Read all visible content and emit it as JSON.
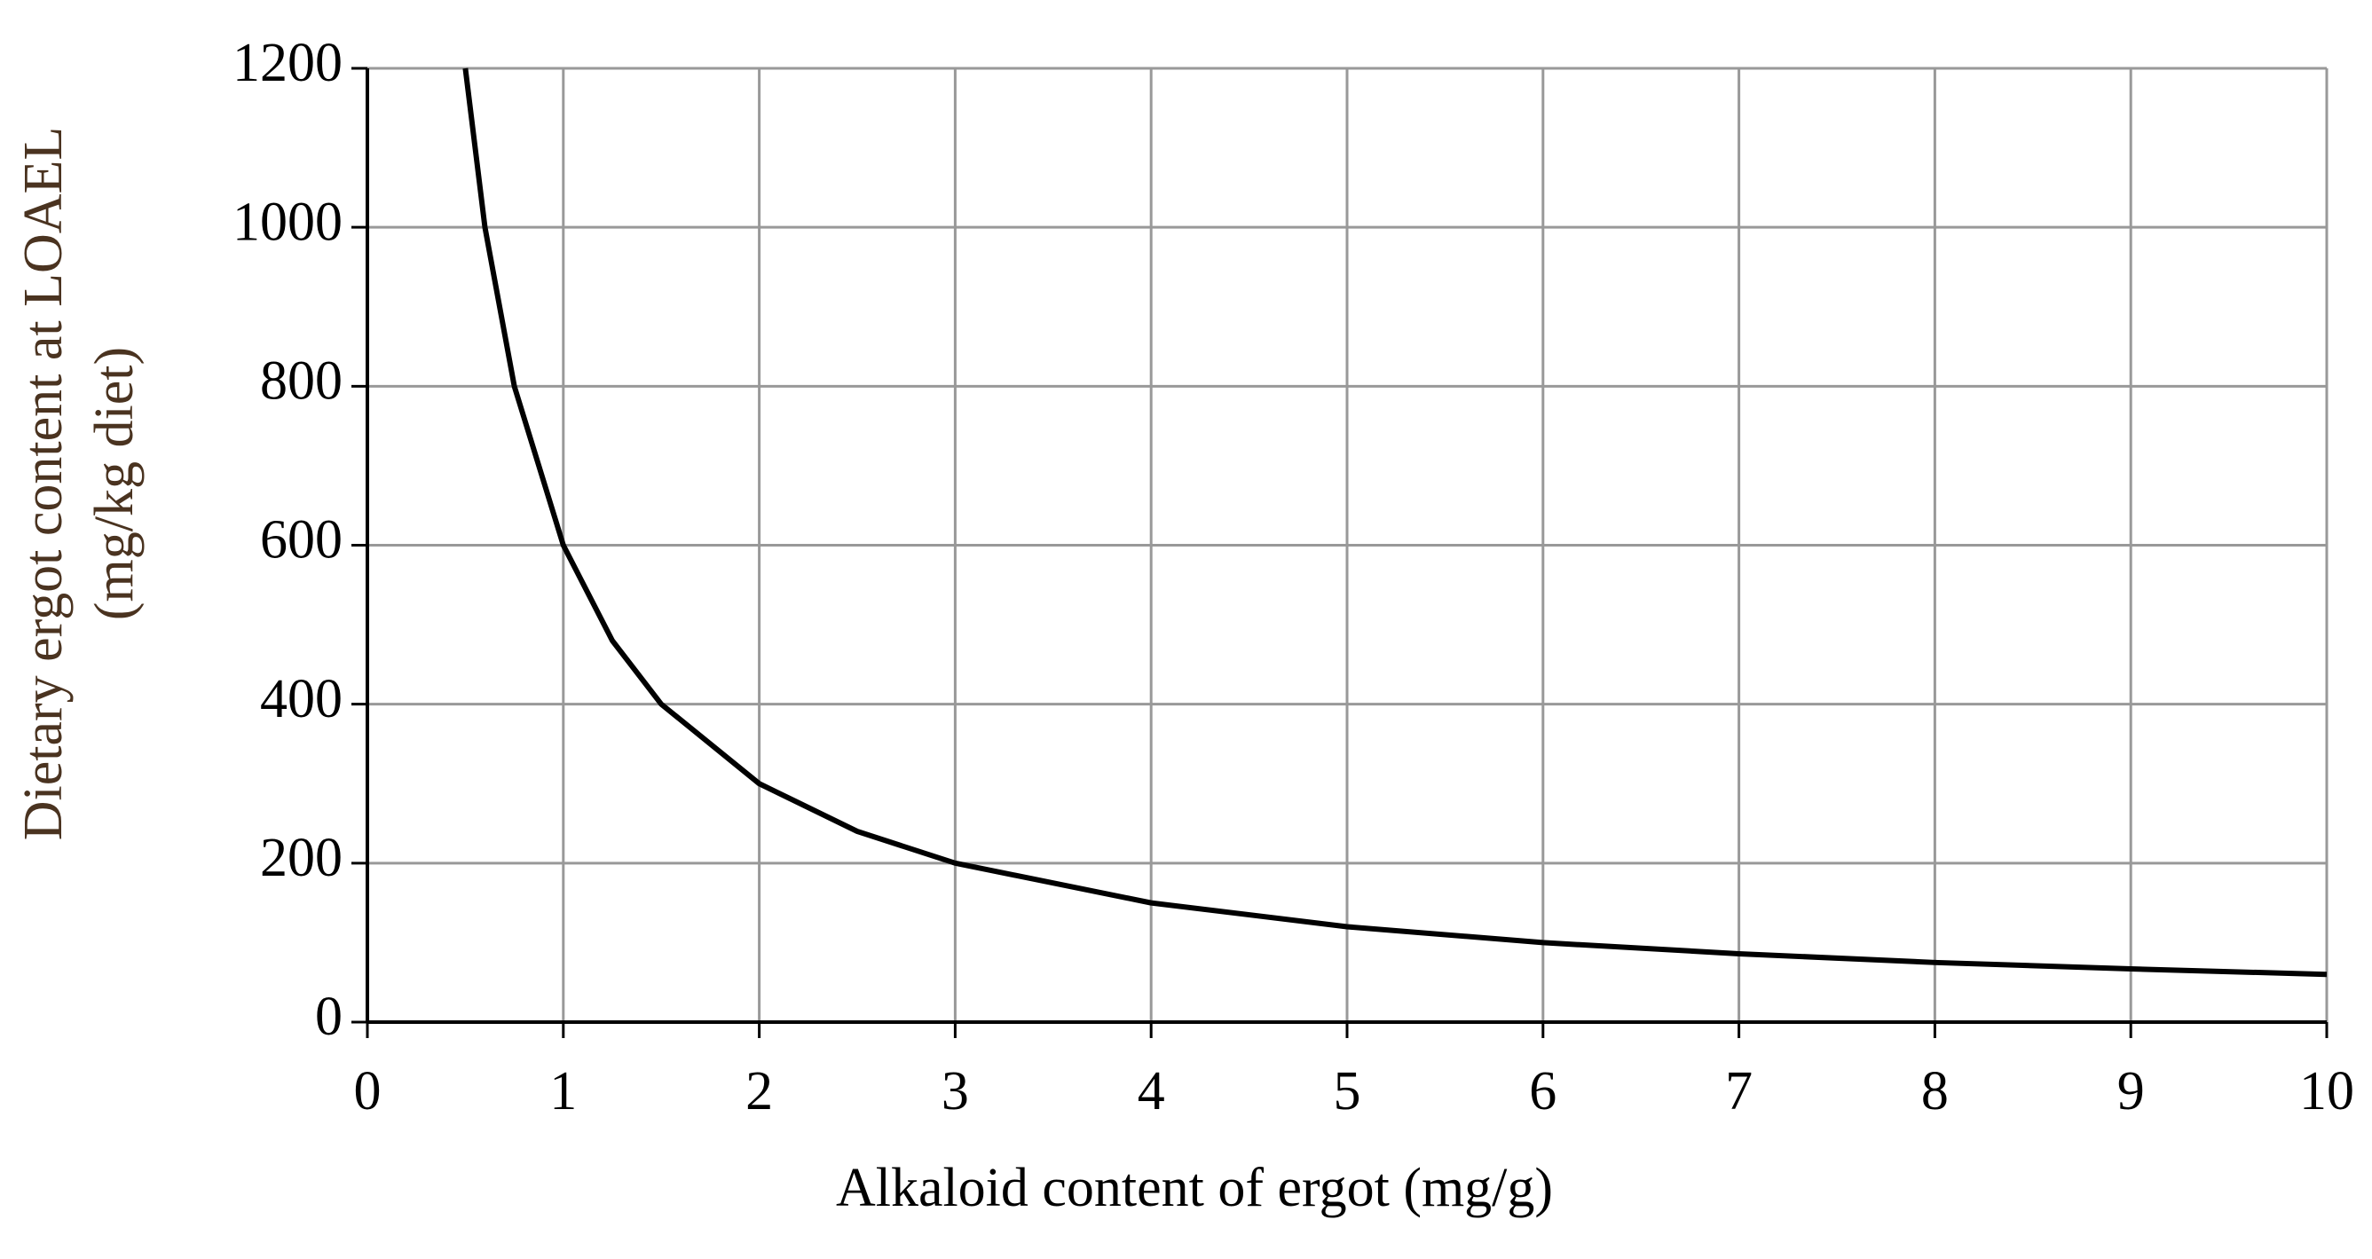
{
  "chart_data": {
    "type": "line",
    "x_label": "Alkaloid content of ergot (mg/g)",
    "y_label": [
      "Dietary ergot content at LOAEL",
      "(mg/kg diet)"
    ],
    "x": [
      0.5,
      0.6,
      0.75,
      1,
      1.25,
      1.5,
      2,
      2.5,
      3,
      4,
      5,
      6,
      7,
      8,
      9,
      10
    ],
    "series": [
      {
        "color": "#000000",
        "values": [
          1200,
          1000,
          800,
          600,
          480,
          400,
          300,
          240,
          200,
          150,
          120,
          100,
          86,
          75,
          67,
          60
        ]
      }
    ],
    "xlim": [
      0,
      10
    ],
    "xticks": [
      0,
      1,
      2,
      3,
      4,
      5,
      6,
      7,
      8,
      9,
      10
    ],
    "ylim": [
      0,
      1200
    ],
    "yticks": [
      0,
      200,
      400,
      600,
      800,
      1000,
      1200
    ],
    "grid": true
  }
}
